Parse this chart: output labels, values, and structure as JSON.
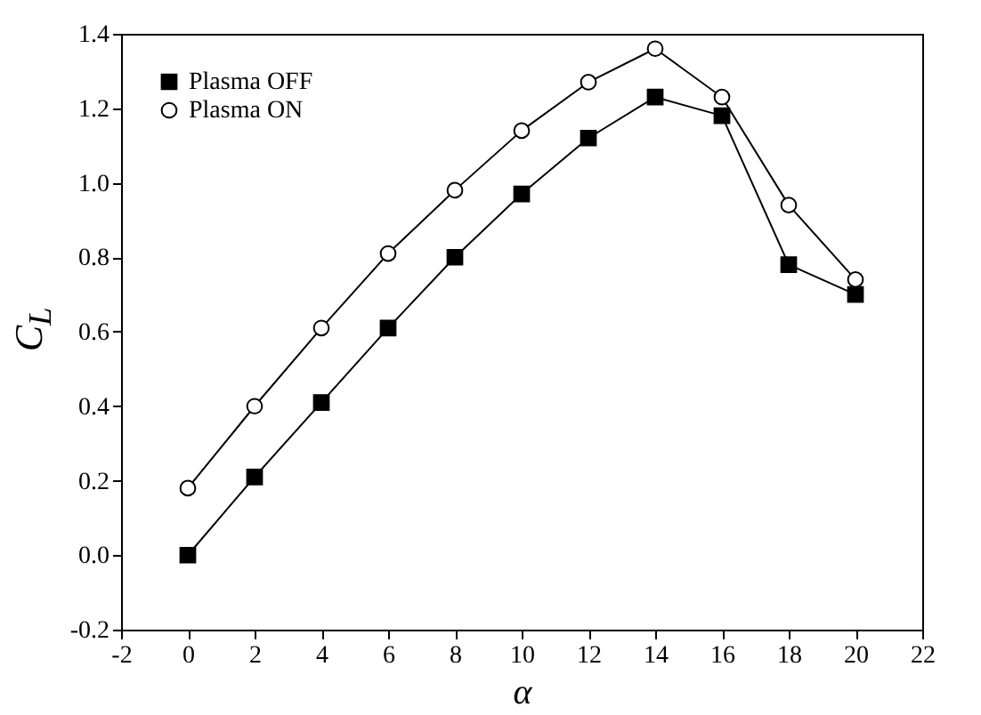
{
  "chart_data": {
    "type": "line",
    "xlabel": "α",
    "ylabel": "C$_{L}$",
    "x": [
      0,
      2,
      4,
      6,
      8,
      10,
      12,
      14,
      16,
      18,
      20
    ],
    "series": [
      {
        "name": "Plasma OFF",
        "color": "#000000",
        "marker": "square",
        "values": [
          0.0,
          0.21,
          0.41,
          0.61,
          0.8,
          0.97,
          1.12,
          1.23,
          1.18,
          0.78,
          0.7
        ]
      },
      {
        "name": "Plasma ON",
        "color": "#000000",
        "marker": "circle",
        "values": [
          0.18,
          0.4,
          0.61,
          0.81,
          0.98,
          1.14,
          1.27,
          1.36,
          1.23,
          0.94,
          0.74
        ]
      }
    ],
    "xlim": [
      -2,
      22
    ],
    "xticks": [
      -2,
      0,
      2,
      4,
      6,
      8,
      10,
      12,
      14,
      16,
      18,
      20,
      22
    ],
    "ylim": [
      -0.2,
      1.4
    ],
    "yticks": [
      -0.2,
      {
        "value": 0,
        "label": "0.0"
      },
      0.2,
      0.4,
      0.6,
      0.8,
      {
        "value": 1,
        "label": "1.0"
      },
      1.2,
      1.4
    ],
    "legend": "top left",
    "grid": false,
    "line_style": "solid"
  }
}
